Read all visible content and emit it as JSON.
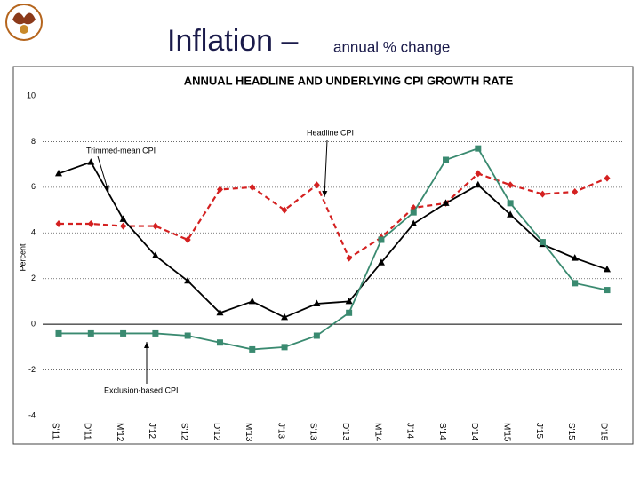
{
  "title_main": "Inflation –",
  "title_sub": "annual % change",
  "chart_data": {
    "type": "line",
    "title": "ANNUAL HEADLINE AND UNDERLYING CPI GROWTH RATE",
    "y_label": "Percent",
    "categories": [
      "S'11",
      "D'11",
      "M'12",
      "J'12",
      "S'12",
      "D'12",
      "M'13",
      "J'13",
      "S'13",
      "D'13",
      "M'14",
      "J'14",
      "S'14",
      "D'14",
      "M'15",
      "J'15",
      "S'15",
      "D'15"
    ],
    "ylim": [
      -4,
      10
    ],
    "yticks": [
      -4,
      -2,
      0,
      2,
      4,
      6,
      8,
      10
    ],
    "grid": true,
    "series": [
      {
        "name": "Headline CPI",
        "color": "#d42020",
        "marker": "diamond",
        "dashed": true,
        "values": [
          4.4,
          4.4,
          4.3,
          4.3,
          3.7,
          5.9,
          6.0,
          5.0,
          6.1,
          2.9,
          3.8,
          5.1,
          5.3,
          6.6,
          6.1,
          5.7,
          5.8,
          6.4
        ]
      },
      {
        "name": "Trimmed-mean CPI",
        "color": "#000000",
        "marker": "triangle",
        "dashed": false,
        "values": [
          6.6,
          7.1,
          4.6,
          3.0,
          1.9,
          0.5,
          1.0,
          0.3,
          0.9,
          1.0,
          2.7,
          4.4,
          5.3,
          6.1,
          4.8,
          3.5,
          2.9,
          2.4
        ]
      },
      {
        "name": "Exclusion-based CPI",
        "color": "#3a8a70",
        "marker": "square",
        "dashed": false,
        "values": [
          -0.4,
          -0.4,
          -0.4,
          -0.4,
          -0.5,
          -0.8,
          -1.1,
          -1.0,
          -0.5,
          0.5,
          3.7,
          4.9,
          7.2,
          7.7,
          5.3,
          3.6,
          1.8,
          1.5
        ]
      }
    ]
  }
}
